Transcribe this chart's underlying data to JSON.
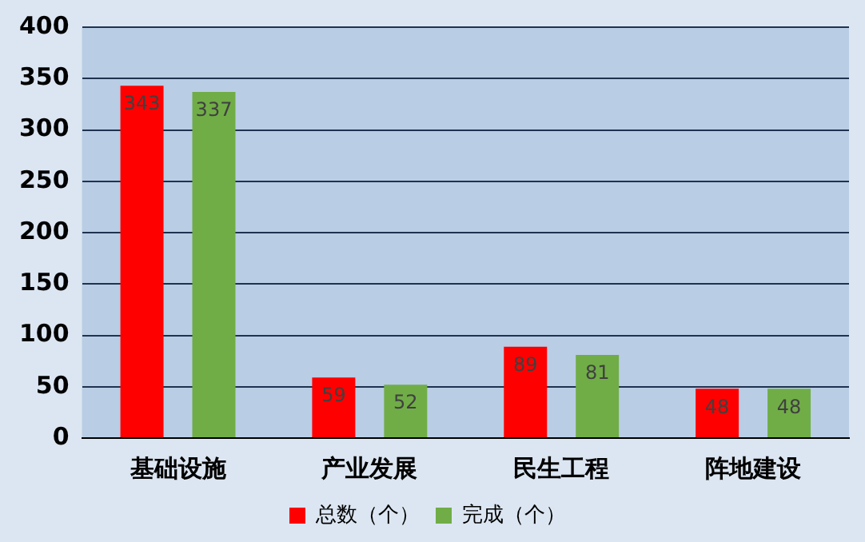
{
  "chart_data": {
    "type": "bar",
    "categories": [
      "基础设施",
      "产业发展",
      "民生工程",
      "阵地建设"
    ],
    "series": [
      {
        "name": "总数（个）",
        "color": "#ff0000",
        "values": [
          343,
          59,
          89,
          48
        ]
      },
      {
        "name": "完成（个）",
        "color": "#70ad47",
        "values": [
          337,
          52,
          81,
          48
        ]
      }
    ],
    "ylim": [
      0,
      400
    ],
    "yticks": [
      0,
      50,
      100,
      150,
      200,
      250,
      300,
      350,
      400
    ],
    "grid": "y",
    "legend": "bottom",
    "data_labels": true
  }
}
